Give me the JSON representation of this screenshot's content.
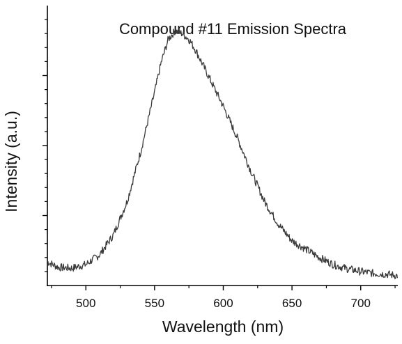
{
  "chart_data": {
    "type": "line",
    "title": "Compound #11 Emission Spectra",
    "xlabel": "Wavelength (nm)",
    "ylabel": "Intensity (a.u.)",
    "xlim": [
      472,
      727
    ],
    "ylim": [
      0,
      1.0
    ],
    "x_ticks": [
      500,
      550,
      600,
      650,
      700
    ],
    "x_tick_labels": [
      "500",
      "550",
      "600",
      "650",
      "700"
    ],
    "y_tick_labels_shown": false,
    "grid": false,
    "legend": "none",
    "line_color": "#3a3a3a",
    "series": [
      {
        "x": [
          472,
          480,
          490,
          500,
          510,
          520,
          530,
          540,
          550,
          555,
          560,
          565,
          570,
          575,
          580,
          590,
          600,
          610,
          620,
          630,
          640,
          650,
          660,
          670,
          680,
          690,
          700,
          710,
          720,
          727
        ],
        "values": [
          0.085,
          0.065,
          0.062,
          0.075,
          0.11,
          0.18,
          0.3,
          0.48,
          0.69,
          0.8,
          0.88,
          0.91,
          0.9,
          0.88,
          0.84,
          0.74,
          0.64,
          0.53,
          0.41,
          0.3,
          0.22,
          0.16,
          0.13,
          0.1,
          0.075,
          0.06,
          0.05,
          0.043,
          0.04,
          0.035
        ]
      }
    ]
  }
}
